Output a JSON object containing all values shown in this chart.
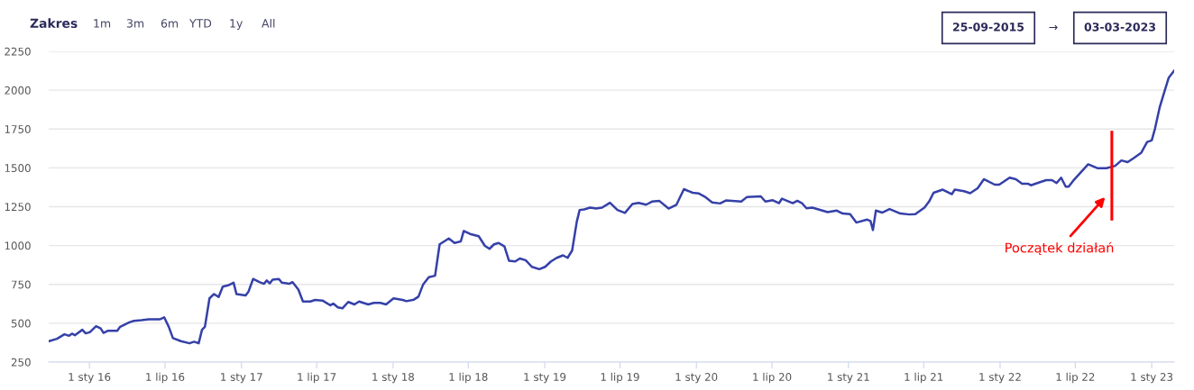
{
  "chart_data": {
    "type": "line",
    "xlim": [
      "2015-09-25",
      "2023-02-24"
    ],
    "ylim": [
      250,
      2250
    ],
    "yticks": [
      250,
      500,
      750,
      1000,
      1250,
      1500,
      1750,
      2000,
      2250
    ],
    "xticks": [
      {
        "value": "2016-01-01",
        "label": "1 sty 16"
      },
      {
        "value": "2016-07-01",
        "label": "1 lip 16"
      },
      {
        "value": "2017-01-01",
        "label": "1 sty 17"
      },
      {
        "value": "2017-07-01",
        "label": "1 lip 17"
      },
      {
        "value": "2018-01-01",
        "label": "1 sty 18"
      },
      {
        "value": "2018-07-01",
        "label": "1 lip 18"
      },
      {
        "value": "2019-01-01",
        "label": "1 sty 19"
      },
      {
        "value": "2019-07-01",
        "label": "1 lip 19"
      },
      {
        "value": "2020-01-01",
        "label": "1 sty 20"
      },
      {
        "value": "2020-07-01",
        "label": "1 lip 20"
      },
      {
        "value": "2021-01-01",
        "label": "1 sty 21"
      },
      {
        "value": "2021-07-01",
        "label": "1 lip 21"
      },
      {
        "value": "2022-01-01",
        "label": "1 sty 22"
      },
      {
        "value": "2022-07-01",
        "label": "1 lip 22"
      },
      {
        "value": "2023-01-01",
        "label": "1 sty 23"
      }
    ],
    "grid": "y",
    "marker": "none",
    "line_style": "solid",
    "series": [
      {
        "color": "#3540a8",
        "x": [
          "2015-09-26",
          "2015-10-15",
          "2015-11-02",
          "2015-11-13",
          "2015-11-20",
          "2015-11-27",
          "2015-12-15",
          "2015-12-23",
          "2016-01-02",
          "2016-01-17",
          "2016-01-28",
          "2016-02-04",
          "2016-02-15",
          "2016-03-08",
          "2016-03-15",
          "2016-04-06",
          "2016-04-17",
          "2016-05-05",
          "2016-05-23",
          "2016-06-18",
          "2016-06-29",
          "2016-07-10",
          "2016-07-20",
          "2016-08-08",
          "2016-08-29",
          "2016-09-09",
          "2016-09-20",
          "2016-09-28",
          "2016-10-05",
          "2016-10-16",
          "2016-10-27",
          "2016-11-07",
          "2016-11-17",
          "2016-12-02",
          "2016-12-13",
          "2016-12-20",
          "2017-01-11",
          "2017-01-18",
          "2017-01-29",
          "2017-02-13",
          "2017-02-24",
          "2017-03-03",
          "2017-03-10",
          "2017-03-17",
          "2017-04-01",
          "2017-04-08",
          "2017-04-26",
          "2017-05-04",
          "2017-05-18",
          "2017-05-29",
          "2017-06-16",
          "2017-06-27",
          "2017-07-15",
          "2017-08-03",
          "2017-08-10",
          "2017-08-21",
          "2017-09-01",
          "2017-09-15",
          "2017-09-30",
          "2017-10-11",
          "2017-11-02",
          "2017-11-16",
          "2017-12-01",
          "2017-12-15",
          "2018-01-02",
          "2018-01-24",
          "2018-02-02",
          "2018-02-20",
          "2018-03-03",
          "2018-03-14",
          "2018-03-28",
          "2018-04-12",
          "2018-04-23",
          "2018-05-15",
          "2018-05-29",
          "2018-06-13",
          "2018-06-20",
          "2018-07-05",
          "2018-07-26",
          "2018-08-10",
          "2018-08-21",
          "2018-09-01",
          "2018-09-12",
          "2018-09-26",
          "2018-10-07",
          "2018-10-22",
          "2018-11-02",
          "2018-11-16",
          "2018-12-01",
          "2018-12-19",
          "2019-01-02",
          "2019-01-16",
          "2019-01-30",
          "2019-02-14",
          "2019-02-25",
          "2019-03-08",
          "2019-03-19",
          "2019-03-26",
          "2019-04-06",
          "2019-04-20",
          "2019-05-05",
          "2019-05-19",
          "2019-06-07",
          "2019-06-25",
          "2019-07-13",
          "2019-07-31",
          "2019-08-15",
          "2019-09-02",
          "2019-09-16",
          "2019-10-04",
          "2019-10-26",
          "2019-11-14",
          "2019-12-02",
          "2019-12-23",
          "2020-01-07",
          "2020-01-21",
          "2020-02-08",
          "2020-02-27",
          "2020-03-12",
          "2020-04-18",
          "2020-05-02",
          "2020-06-04",
          "2020-06-15",
          "2020-07-03",
          "2020-07-18",
          "2020-07-25",
          "2020-08-20",
          "2020-08-31",
          "2020-09-11",
          "2020-09-22",
          "2020-10-06",
          "2020-11-12",
          "2020-12-04",
          "2020-12-18",
          "2021-01-05",
          "2021-01-20",
          "2021-02-15",
          "2021-02-23",
          "2021-03-01",
          "2021-03-08",
          "2021-03-23",
          "2021-04-10",
          "2021-05-06",
          "2021-05-28",
          "2021-06-11",
          "2021-07-03",
          "2021-07-14",
          "2021-07-25",
          "2021-08-16",
          "2021-09-07",
          "2021-09-14",
          "2021-10-06",
          "2021-10-21",
          "2021-11-08",
          "2021-11-23",
          "2021-12-19",
          "2021-12-30",
          "2022-01-24",
          "2022-02-08",
          "2022-02-23",
          "2022-03-09",
          "2022-03-16",
          "2022-04-07",
          "2022-04-22",
          "2022-05-06",
          "2022-05-17",
          "2022-05-28",
          "2022-06-08",
          "2022-06-15",
          "2022-06-26",
          "2022-08-01",
          "2022-08-23",
          "2022-09-14",
          "2022-10-05",
          "2022-10-20",
          "2022-11-04",
          "2022-11-18",
          "2022-12-07",
          "2022-12-21",
          "2023-01-01",
          "2023-01-09",
          "2023-01-20",
          "2023-01-31",
          "2023-02-11",
          "2023-02-24"
        ],
        "values": [
          385,
          400,
          429,
          419,
          433,
          423,
          458,
          435,
          442,
          481,
          467,
          438,
          452,
          452,
          477,
          506,
          515,
          519,
          525,
          525,
          538,
          477,
          404,
          385,
          371,
          381,
          371,
          458,
          477,
          660,
          688,
          669,
          736,
          746,
          761,
          688,
          679,
          704,
          785,
          765,
          754,
          775,
          756,
          781,
          785,
          761,
          754,
          765,
          717,
          640,
          640,
          650,
          646,
          615,
          627,
          602,
          596,
          637,
          621,
          640,
          621,
          631,
          631,
          621,
          660,
          650,
          642,
          652,
          671,
          748,
          796,
          806,
          1008,
          1046,
          1017,
          1027,
          1094,
          1075,
          1060,
          998,
          979,
          1008,
          1017,
          994,
          902,
          898,
          917,
          906,
          863,
          848,
          863,
          898,
          921,
          937,
          921,
          969,
          1152,
          1229,
          1233,
          1244,
          1238,
          1244,
          1275,
          1229,
          1210,
          1267,
          1275,
          1263,
          1283,
          1287,
          1238,
          1263,
          1363,
          1340,
          1335,
          1315,
          1277,
          1271,
          1290,
          1283,
          1313,
          1317,
          1283,
          1292,
          1273,
          1302,
          1273,
          1288,
          1273,
          1240,
          1244,
          1215,
          1225,
          1206,
          1202,
          1148,
          1167,
          1158,
          1100,
          1225,
          1212,
          1235,
          1206,
          1200,
          1202,
          1244,
          1283,
          1340,
          1360,
          1331,
          1360,
          1350,
          1337,
          1369,
          1427,
          1392,
          1392,
          1437,
          1427,
          1398,
          1398,
          1388,
          1408,
          1421,
          1421,
          1402,
          1437,
          1379,
          1379,
          1417,
          1523,
          1498,
          1498,
          1513,
          1548,
          1537,
          1562,
          1598,
          1667,
          1677,
          1754,
          1888,
          1985,
          2081,
          2125
        ]
      }
    ],
    "ref_lines": [
      {
        "axis": "x",
        "value": "2022-09-27",
        "color": "#ff0000",
        "line_style": "solid",
        "label": "Początek działań"
      }
    ],
    "annotations": [
      "Zakres",
      "1m",
      "3m",
      "6m",
      "YTD",
      "1y",
      "All",
      "25-09-2015",
      "→",
      "03-03-2023"
    ]
  }
}
